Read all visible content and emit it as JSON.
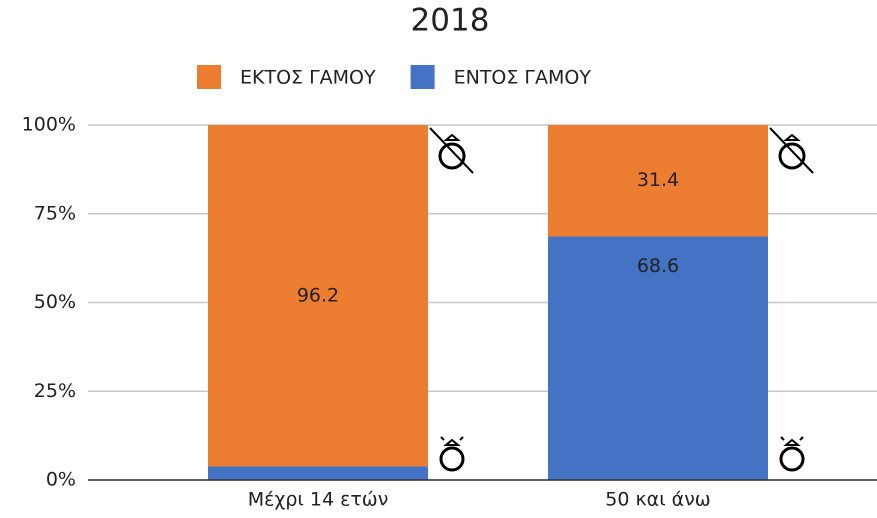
{
  "chart_data": {
    "type": "stacked_bar",
    "title": "2018",
    "categories": [
      "Μέχρι 14 ετών",
      "50 και άνω"
    ],
    "series": [
      {
        "name": "ΕΝΤΟΣ ΓΑΜΟΥ",
        "color": "#4472c4",
        "values": [
          3.8,
          68.6
        ]
      },
      {
        "name": "ΕΚΤΟΣ ΓΑΜΟΥ",
        "color": "#ed7d31",
        "values": [
          96.2,
          31.4
        ]
      }
    ],
    "ylim": [
      0,
      100
    ],
    "yticks": [
      {
        "value": 0,
        "label": "0%"
      },
      {
        "value": 25,
        "label": "25%"
      },
      {
        "value": 50,
        "label": "50%"
      },
      {
        "value": 75,
        "label": "75%"
      },
      {
        "value": 100,
        "label": "100%"
      }
    ],
    "grid": true,
    "legend": "top"
  }
}
